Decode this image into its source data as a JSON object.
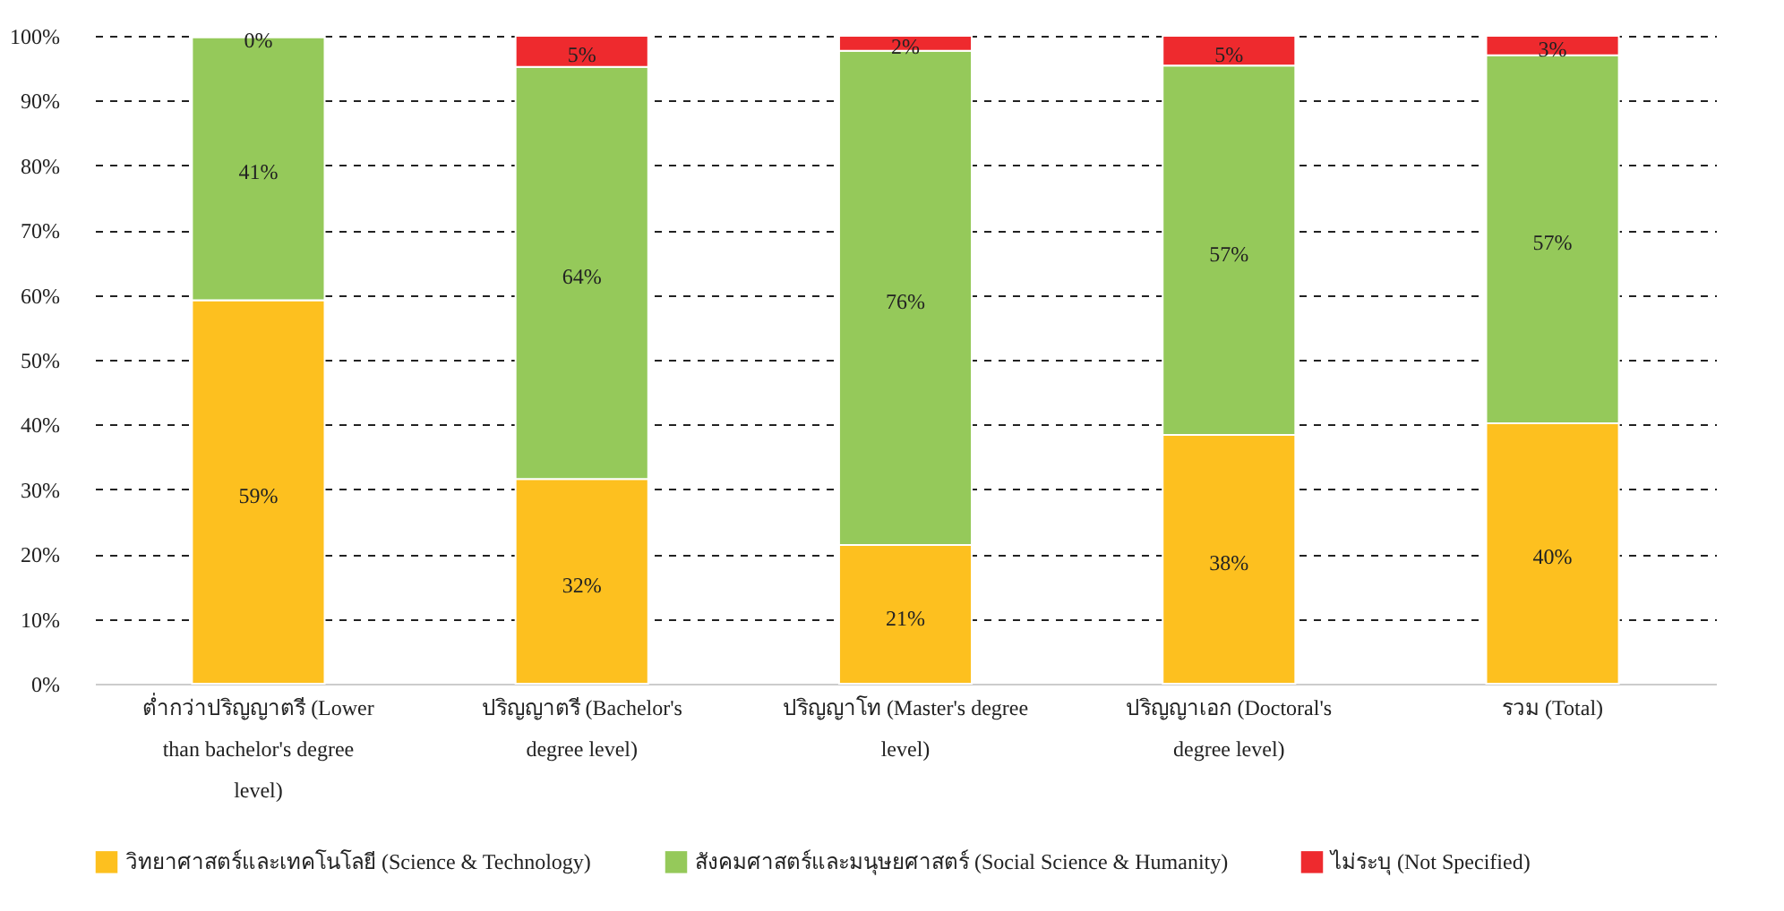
{
  "chart_data": {
    "type": "bar",
    "stacked": true,
    "categories": [
      "ต่ำกว่าปริญญาตรี (Lower than bachelor's degree level)",
      "ปริญญาตรี (Bachelor's degree level)",
      "ปริญญาโท (Master's degree level)",
      "ปริญญาเอก (Doctoral's degree level)",
      "รวม (Total)"
    ],
    "series": [
      {
        "name": "วิทยาศาสตร์และเทคโนโลยี (Science & Technology)",
        "color": "#fdc01f",
        "values": [
          59.2,
          31.6,
          21.4,
          38.4,
          40.2
        ],
        "value_labels": [
          "59%",
          "32%",
          "21%",
          "38%",
          "40%"
        ]
      },
      {
        "name": "สังคมศาสตร์และมนุษยศาสตร์ (Social Science & Humanity)",
        "color": "#95c95a",
        "values": [
          40.6,
          63.6,
          76.3,
          57.0,
          56.8
        ],
        "value_labels": [
          "41%",
          "64%",
          "76%",
          "57%",
          "57%"
        ]
      },
      {
        "name": "ไม่ระบุ (Not Specified)",
        "color": "#ee2a2e",
        "values": [
          0.2,
          4.8,
          2.3,
          4.6,
          3.0
        ],
        "value_labels": [
          "0%",
          "5%",
          "2%",
          "5%",
          "3%"
        ]
      }
    ],
    "ylim": [
      0,
      100
    ],
    "yticks": [
      {
        "value": 0,
        "label": "0%"
      },
      {
        "value": 10,
        "label": "10%"
      },
      {
        "value": 20,
        "label": "20%"
      },
      {
        "value": 30,
        "label": "30%"
      },
      {
        "value": 40,
        "label": "40%"
      },
      {
        "value": 50,
        "label": "50%"
      },
      {
        "value": 60,
        "label": "60%"
      },
      {
        "value": 70,
        "label": "70%"
      },
      {
        "value": 80,
        "label": "80%"
      },
      {
        "value": 90,
        "label": "90%"
      },
      {
        "value": 100,
        "label": "100%"
      }
    ],
    "grid": true,
    "line_style": "dashed",
    "legend": "bottom"
  }
}
